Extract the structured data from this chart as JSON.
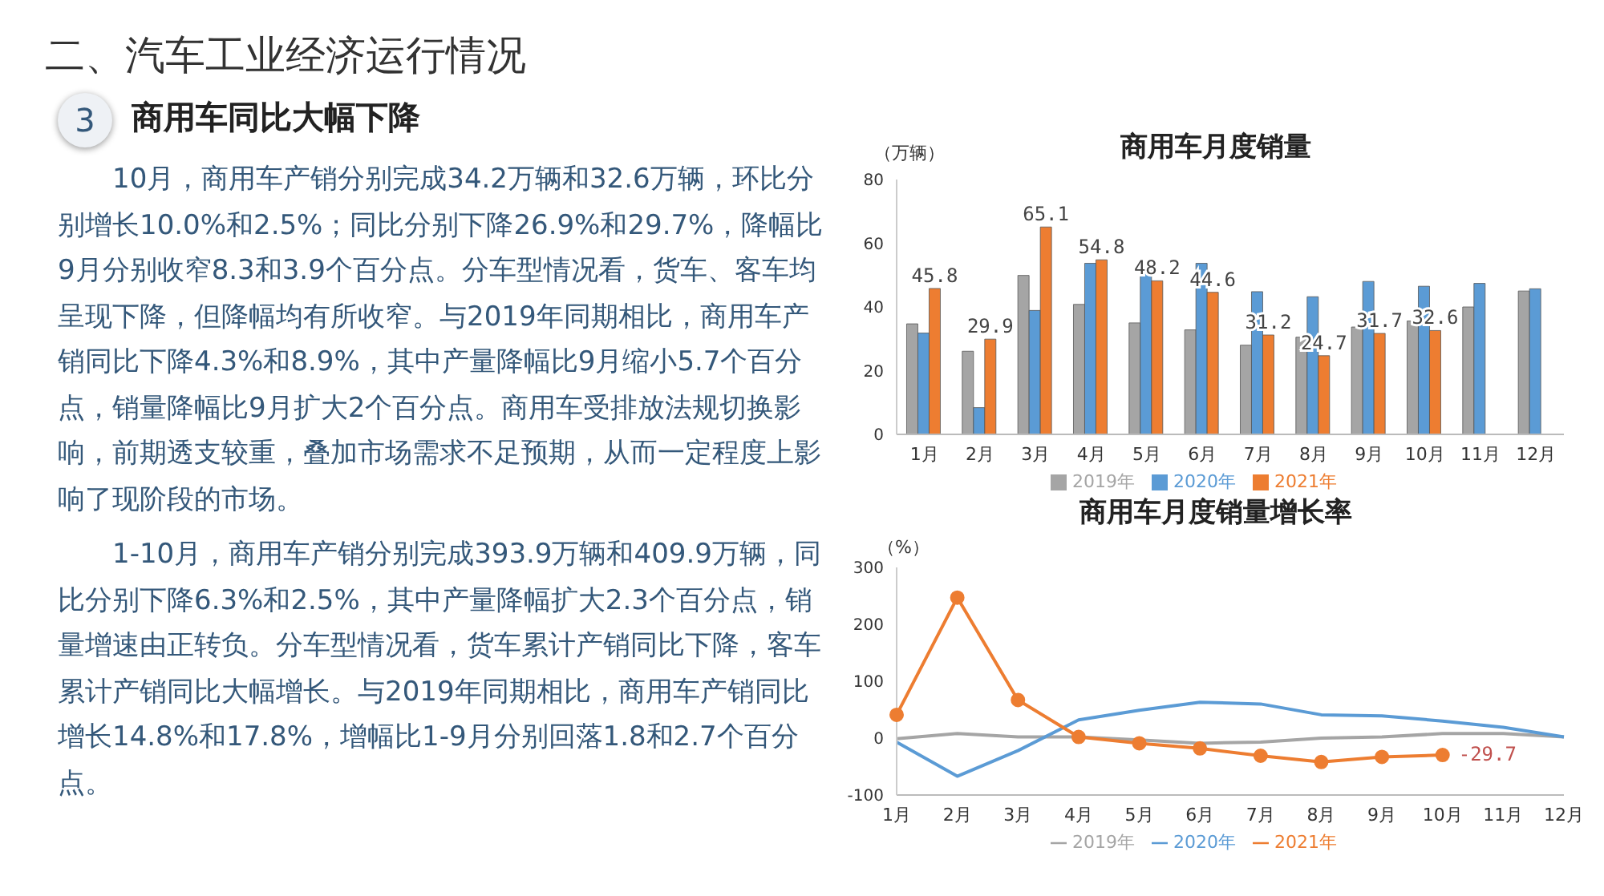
{
  "chart_data": [
    {
      "type": "other",
      "title": "二、汽车工业经济运行情况",
      "subtitle": "商用车同比大幅下降",
      "annotations": [
        "3",
        "10月，商用车产销分别完成34.2万辆和32.6万辆，环比分别增长10.0%和2.5%；同比分别下降26.9%和29.7%，降幅比9月分别收窄8.3和3.9个百分点。分车型情况看，货车、客车均呈现下降，但降幅均有所收窄。与2019年同期相比，商用车产销同比下降4.3%和8.9%，其中产量降幅比9月缩小5.7个百分点，销量降幅比9月扩大2个百分点。商用车受排放法规切换影响，前期透支较重，叠加市场需求不足预期，从而一定程度上影响了现阶段的市场。",
        "1-10月，商用车产销分别完成393.9万辆和409.9万辆，同比分别下降6.3%和2.5%，其中产量降幅扩大2.3个百分点，销量增速由正转负。分车型情况看，货车累计产销同比下降，客车累计产销同比大幅增长。与2019年同期相比，商用车产销同比增长14.8%和17.8%，增幅比1-9月分别回落1.8和2.7个百分点。"
      ]
    },
    {
      "type": "bar",
      "title": "商用车月度销量",
      "ylabel": "（万辆）",
      "categories": [
        "1月",
        "2月",
        "3月",
        "4月",
        "5月",
        "6月",
        "7月",
        "8月",
        "9月",
        "10月",
        "11月",
        "12月"
      ],
      "ylim": [
        0,
        80
      ],
      "yticks": [
        0,
        20,
        40,
        60,
        80
      ],
      "legend": "bottom",
      "series": [
        {
          "name": "2019年",
          "color": "#a5a5a5",
          "values": [
            34.7,
            26.1,
            49.9,
            40.8,
            35,
            32.8,
            28,
            30.5,
            33.7,
            35.6,
            40,
            45
          ]
        },
        {
          "name": "2020年",
          "color": "#5b9bd5",
          "values": [
            31.8,
            8.4,
            38.9,
            53.7,
            51.8,
            53.7,
            44.8,
            43.2,
            48,
            46.5,
            47.4,
            45.7
          ]
        },
        {
          "name": "2021年",
          "color": "#ed7d31",
          "values": [
            45.8,
            29.9,
            65.1,
            54.8,
            48.2,
            44.6,
            31.2,
            24.7,
            31.7,
            32.6,
            null,
            null
          ],
          "value_labels": [
            "45.8",
            "29.9",
            "65.1",
            "54.8",
            "48.2",
            "44.6",
            "31.2",
            "24.7",
            "31.7",
            "32.6",
            null,
            null
          ]
        }
      ]
    },
    {
      "type": "line",
      "title": "商用车月度销量增长率",
      "ylabel": "（%）",
      "categories": [
        "1月",
        "2月",
        "3月",
        "4月",
        "5月",
        "6月",
        "7月",
        "8月",
        "9月",
        "10月",
        "11月",
        "12月"
      ],
      "ylim": [
        -100,
        300
      ],
      "yticks": [
        -100,
        0,
        100,
        200,
        300
      ],
      "legend": "bottom",
      "series": [
        {
          "name": "2019年",
          "color": "#a5a5a5",
          "marker": "none",
          "values": [
            -1,
            8,
            2,
            2,
            -3,
            -9,
            -7,
            0,
            2,
            8,
            8,
            2
          ]
        },
        {
          "name": "2020年",
          "color": "#5b9bd5",
          "marker": "none",
          "values": [
            -7,
            -67,
            -22,
            32,
            49,
            63,
            60,
            41,
            39,
            30,
            19,
            2
          ]
        },
        {
          "name": "2021年",
          "color": "#ed7d31",
          "marker": "circle",
          "values": [
            41,
            247,
            67,
            2,
            -9,
            -18,
            -31,
            -42,
            -33,
            -29.7,
            null,
            null
          ],
          "value_labels": [
            null,
            null,
            null,
            null,
            null,
            null,
            null,
            null,
            null,
            "-29.7",
            null,
            null
          ]
        }
      ]
    }
  ]
}
